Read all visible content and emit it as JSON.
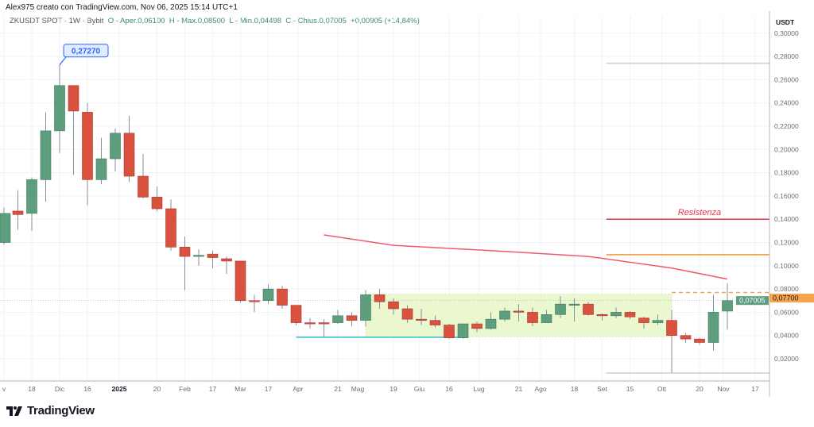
{
  "header": {
    "author_line": "Alex975 creato con TradingView.com, Nov 06, 2025 15:14 UTC+1"
  },
  "legend": {
    "symbol": "ZKUSDT SPOT · 1W · Bybit",
    "open": "O - Aper.0,06100",
    "high": "H - Max.0,08500",
    "low": "L - Min.0,04498",
    "close": "C - Chius.0,07005",
    "change": "+0,00905 (+14,84%)"
  },
  "brand": {
    "name": "TradingView"
  },
  "chart_data": {
    "type": "candlestick",
    "interval": "1W",
    "currency_label": "USDT",
    "ylim": [
      0,
      0.3
    ],
    "y_ticks": [
      "0,02000",
      "0,04000",
      "0,06000",
      "0,08000",
      "0,10000",
      "0,12000",
      "0,14000",
      "0,16000",
      "0,18000",
      "0,20000",
      "0,22000",
      "0,24000",
      "0,26000",
      "0,28000",
      "0,30000"
    ],
    "x_ticks": [
      {
        "label": "v",
        "date": "2024-11-04"
      },
      {
        "label": "18",
        "date": "2024-11-18"
      },
      {
        "label": "Dic",
        "date": "2024-12-02"
      },
      {
        "label": "16",
        "date": "2024-12-16"
      },
      {
        "label": "2025",
        "date": "2025-01-01",
        "bold": true
      },
      {
        "label": "20",
        "date": "2025-01-20"
      },
      {
        "label": "Feb",
        "date": "2025-02-03"
      },
      {
        "label": "17",
        "date": "2025-02-17"
      },
      {
        "label": "Mar",
        "date": "2025-03-03"
      },
      {
        "label": "17",
        "date": "2025-03-17"
      },
      {
        "label": "Apr",
        "date": "2025-04-01"
      },
      {
        "label": "21",
        "date": "2025-04-21"
      },
      {
        "label": "Mag",
        "date": "2025-05-01"
      },
      {
        "label": "19",
        "date": "2025-05-19"
      },
      {
        "label": "Giu",
        "date": "2025-06-01"
      },
      {
        "label": "16",
        "date": "2025-06-16"
      },
      {
        "label": "Lug",
        "date": "2025-07-01"
      },
      {
        "label": "21",
        "date": "2025-07-21"
      },
      {
        "label": "Ago",
        "date": "2025-08-01"
      },
      {
        "label": "18",
        "date": "2025-08-18"
      },
      {
        "label": "Set",
        "date": "2025-09-01"
      },
      {
        "label": "15",
        "date": "2025-09-15"
      },
      {
        "label": "Ott",
        "date": "2025-10-01"
      },
      {
        "label": "20",
        "date": "2025-10-20"
      },
      {
        "label": "Nov",
        "date": "2025-11-01"
      },
      {
        "label": "17",
        "date": "2025-11-17"
      }
    ],
    "first_week": "2024-11-04",
    "candles_ohlc": [
      [
        0.12,
        0.15,
        0.118,
        0.145
      ],
      [
        0.147,
        0.165,
        0.131,
        0.144
      ],
      [
        0.145,
        0.176,
        0.13,
        0.174
      ],
      [
        0.174,
        0.232,
        0.155,
        0.216
      ],
      [
        0.216,
        0.2727,
        0.197,
        0.255
      ],
      [
        0.255,
        0.255,
        0.178,
        0.233
      ],
      [
        0.232,
        0.24,
        0.152,
        0.174
      ],
      [
        0.174,
        0.21,
        0.17,
        0.192
      ],
      [
        0.192,
        0.218,
        0.181,
        0.214
      ],
      [
        0.214,
        0.229,
        0.172,
        0.177
      ],
      [
        0.177,
        0.196,
        0.158,
        0.159
      ],
      [
        0.159,
        0.168,
        0.147,
        0.149
      ],
      [
        0.149,
        0.157,
        0.113,
        0.116
      ],
      [
        0.116,
        0.125,
        0.079,
        0.108
      ],
      [
        0.108,
        0.114,
        0.1,
        0.109
      ],
      [
        0.11,
        0.113,
        0.098,
        0.107
      ],
      [
        0.106,
        0.108,
        0.093,
        0.104
      ],
      [
        0.104,
        0.104,
        0.068,
        0.07
      ],
      [
        0.07,
        0.075,
        0.06,
        0.0695
      ],
      [
        0.07,
        0.084,
        0.067,
        0.08
      ],
      [
        0.08,
        0.083,
        0.063,
        0.066
      ],
      [
        0.066,
        0.066,
        0.049,
        0.051
      ],
      [
        0.051,
        0.055,
        0.046,
        0.0508
      ],
      [
        0.051,
        0.054,
        0.039,
        0.05
      ],
      [
        0.051,
        0.062,
        0.05,
        0.057
      ],
      [
        0.057,
        0.06,
        0.048,
        0.053
      ],
      [
        0.053,
        0.079,
        0.048,
        0.075
      ],
      [
        0.075,
        0.08,
        0.063,
        0.069
      ],
      [
        0.069,
        0.072,
        0.058,
        0.063
      ],
      [
        0.063,
        0.066,
        0.051,
        0.054
      ],
      [
        0.054,
        0.063,
        0.049,
        0.053
      ],
      [
        0.053,
        0.057,
        0.047,
        0.049
      ],
      [
        0.049,
        0.05,
        0.037,
        0.038
      ],
      [
        0.038,
        0.05,
        0.037,
        0.05
      ],
      [
        0.05,
        0.052,
        0.043,
        0.046
      ],
      [
        0.046,
        0.06,
        0.045,
        0.054
      ],
      [
        0.054,
        0.064,
        0.052,
        0.061
      ],
      [
        0.061,
        0.067,
        0.052,
        0.06
      ],
      [
        0.06,
        0.064,
        0.048,
        0.051
      ],
      [
        0.051,
        0.062,
        0.051,
        0.058
      ],
      [
        0.058,
        0.074,
        0.055,
        0.067
      ],
      [
        0.0665,
        0.072,
        0.052,
        0.067
      ],
      [
        0.067,
        0.069,
        0.057,
        0.058
      ],
      [
        0.058,
        0.059,
        0.053,
        0.057
      ],
      [
        0.057,
        0.064,
        0.055,
        0.06
      ],
      [
        0.06,
        0.061,
        0.054,
        0.056
      ],
      [
        0.055,
        0.056,
        0.046,
        0.051
      ],
      [
        0.051,
        0.058,
        0.049,
        0.053
      ],
      [
        0.053,
        0.062,
        0.008,
        0.04
      ],
      [
        0.04,
        0.042,
        0.034,
        0.037
      ],
      [
        0.037,
        0.038,
        0.032,
        0.034
      ],
      [
        0.034,
        0.075,
        0.027,
        0.06
      ],
      [
        0.061,
        0.085,
        0.04498,
        0.07005
      ]
    ],
    "ma_line": {
      "color": "#f05a6e",
      "from_week": 23,
      "points": [
        [
          23,
          0.1265
        ],
        [
          28,
          0.1175
        ],
        [
          35,
          0.113
        ],
        [
          42,
          0.108
        ],
        [
          48,
          0.098
        ],
        [
          52,
          0.0885
        ]
      ]
    },
    "annotations": {
      "high_callout": {
        "label": "0,27270",
        "value": 0.2727,
        "week": 4,
        "color": "#2962ff"
      },
      "resistance": {
        "label": "Resistenza",
        "value": 0.14,
        "color": "#e5334b",
        "from_week": 43.3
      },
      "orange_level": {
        "value": 0.1095,
        "color": "#f7932d",
        "from_week": 43.3
      },
      "fib_top": {
        "value": 0.274,
        "from_week": 43.3
      },
      "fib_bottom": {
        "value": 0.0077,
        "from_week": 43.3
      },
      "range_box": {
        "top": 0.0757,
        "bottom": 0.0389,
        "from_week": 26,
        "to_week": 48,
        "color": "#eaf7cf"
      },
      "support_line": {
        "value": 0.0385,
        "from_week": 21,
        "to_week": 33,
        "color": "#4dc4d6"
      },
      "dashed_level": {
        "label": "0,07700",
        "value": 0.077,
        "color": "#f7a54a",
        "from_week": 48
      },
      "last_price": {
        "label": "0,07005",
        "value": 0.07005,
        "color": "#5e9e7e"
      }
    },
    "colors": {
      "up": "#5e9e7e",
      "down": "#d9513f"
    }
  }
}
